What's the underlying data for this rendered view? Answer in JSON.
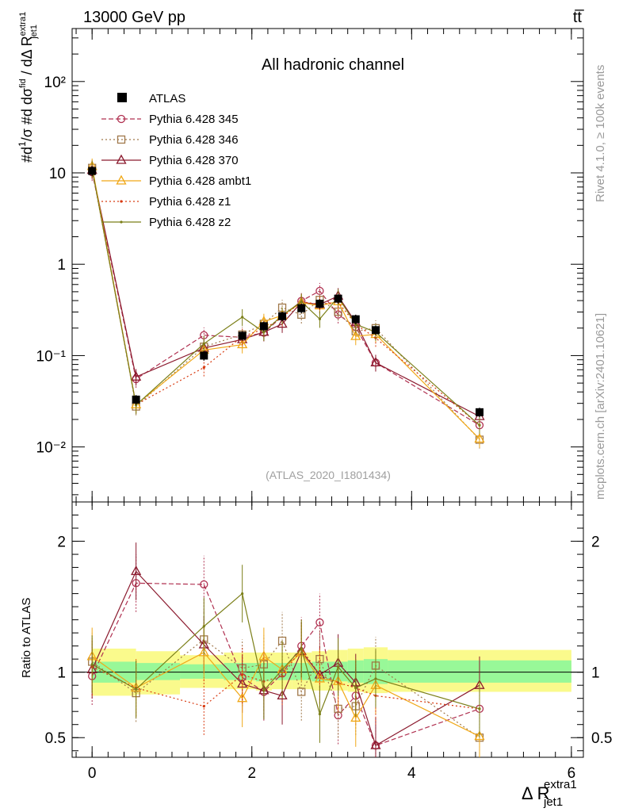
{
  "header": {
    "energy_label": "13000 GeV pp",
    "process_label": "tt̅"
  },
  "side_labels": {
    "rivet": "Rivet 4.1.0, ≥ 100k events",
    "mcplots": "mcplots.cern.ch [arXiv:2401.10621]"
  },
  "chart_data": {
    "type": "line",
    "title": "All hadronic channel",
    "analysis_tag": "(ATLAS_2020_I1801434)",
    "xlabel_main": "Δ R",
    "xlabel_sup": "extra1",
    "xlabel_sub": "jet1",
    "ylabel_main": "#d¹/σ #d dσ^fid / dΔ R^extra1_jet1",
    "ylabel_ratio": "Ratio to ATLAS",
    "xlim": [
      -0.25,
      6.15
    ],
    "ylim_main": [
      0.0025,
      380
    ],
    "ylim_ratio": [
      0.35,
      2.3
    ],
    "x_ticks": [
      "0",
      "2",
      "4",
      "6"
    ],
    "y_ticks_main": [
      "10⁻²",
      "10⁻¹",
      "1",
      "10",
      "10²"
    ],
    "y_ticks_ratio": [
      "0.5",
      "1",
      "2"
    ],
    "x": [
      0.0,
      0.55,
      1.4,
      1.88,
      2.15,
      2.38,
      2.62,
      2.85,
      3.08,
      3.3,
      3.55,
      4.85
    ],
    "reference": {
      "name": "ATLAS",
      "values": [
        10.5,
        0.033,
        0.1,
        0.165,
        0.21,
        0.27,
        0.33,
        0.37,
        0.42,
        0.25,
        0.19,
        0.024
      ],
      "band_edges": [
        0.0,
        0.55,
        1.1,
        1.65,
        2.05,
        2.25,
        2.5,
        2.75,
        2.95,
        3.2,
        3.4,
        3.7,
        6.0
      ],
      "inner_band_lo": [
        0.92,
        0.94,
        0.95,
        0.94,
        0.93,
        0.94,
        0.94,
        0.93,
        0.93,
        0.92,
        0.91,
        0.92
      ],
      "inner_band_hi": [
        1.08,
        1.07,
        1.06,
        1.07,
        1.07,
        1.07,
        1.07,
        1.08,
        1.08,
        1.09,
        1.1,
        1.09
      ],
      "outer_band_lo": [
        0.82,
        0.83,
        0.88,
        0.87,
        0.86,
        0.87,
        0.87,
        0.86,
        0.86,
        0.85,
        0.84,
        0.85
      ],
      "outer_band_hi": [
        1.18,
        1.16,
        1.13,
        1.15,
        1.15,
        1.15,
        1.15,
        1.16,
        1.17,
        1.18,
        1.19,
        1.17
      ]
    },
    "series": [
      {
        "name": "Pythia 6.428 345",
        "color": "#b03050",
        "marker": "circle",
        "dash": "6,3",
        "ratio": [
          0.97,
          1.68,
          1.67,
          0.96,
          0.85,
          0.99,
          1.2,
          1.38,
          0.67,
          0.82,
          0.44,
          0.72
        ]
      },
      {
        "name": "Pythia 6.428 346",
        "color": "#a0784a",
        "marker": "square",
        "dash": "2,3",
        "ratio": [
          1.08,
          0.84,
          1.25,
          1.03,
          1.06,
          1.24,
          0.85,
          1.1,
          0.72,
          0.74,
          1.05,
          0.5
        ]
      },
      {
        "name": "Pythia 6.428 370",
        "color": "#8b1a2e",
        "marker": "triangle",
        "dash": "",
        "ratio": [
          1.02,
          1.77,
          1.21,
          0.91,
          0.86,
          0.82,
          1.16,
          0.98,
          1.07,
          0.92,
          0.44,
          0.9
        ]
      },
      {
        "name": "Pythia 6.428 ambt1",
        "color": "#f0a818",
        "marker": "triangle",
        "dash": "",
        "ratio": [
          1.12,
          0.88,
          1.15,
          0.8,
          1.12,
          1.02,
          1.15,
          0.95,
          0.93,
          0.65,
          0.9,
          0.51
        ]
      },
      {
        "name": "Pythia 6.428 z1",
        "color": "#d83a10",
        "marker": "dot",
        "dash": "2,3",
        "ratio": [
          1.04,
          0.88,
          0.74,
          0.98,
          0.93,
          0.97,
          1.18,
          0.98,
          0.92,
          0.88,
          0.82,
          0.72
        ]
      },
      {
        "name": "Pythia 6.428 z2",
        "color": "#7b7f18",
        "marker": "dot",
        "dash": "",
        "ratio": [
          1.06,
          0.87,
          1.35,
          1.6,
          0.86,
          1.02,
          1.18,
          0.68,
          1.04,
          0.88,
          0.95,
          0.72
        ]
      }
    ]
  }
}
